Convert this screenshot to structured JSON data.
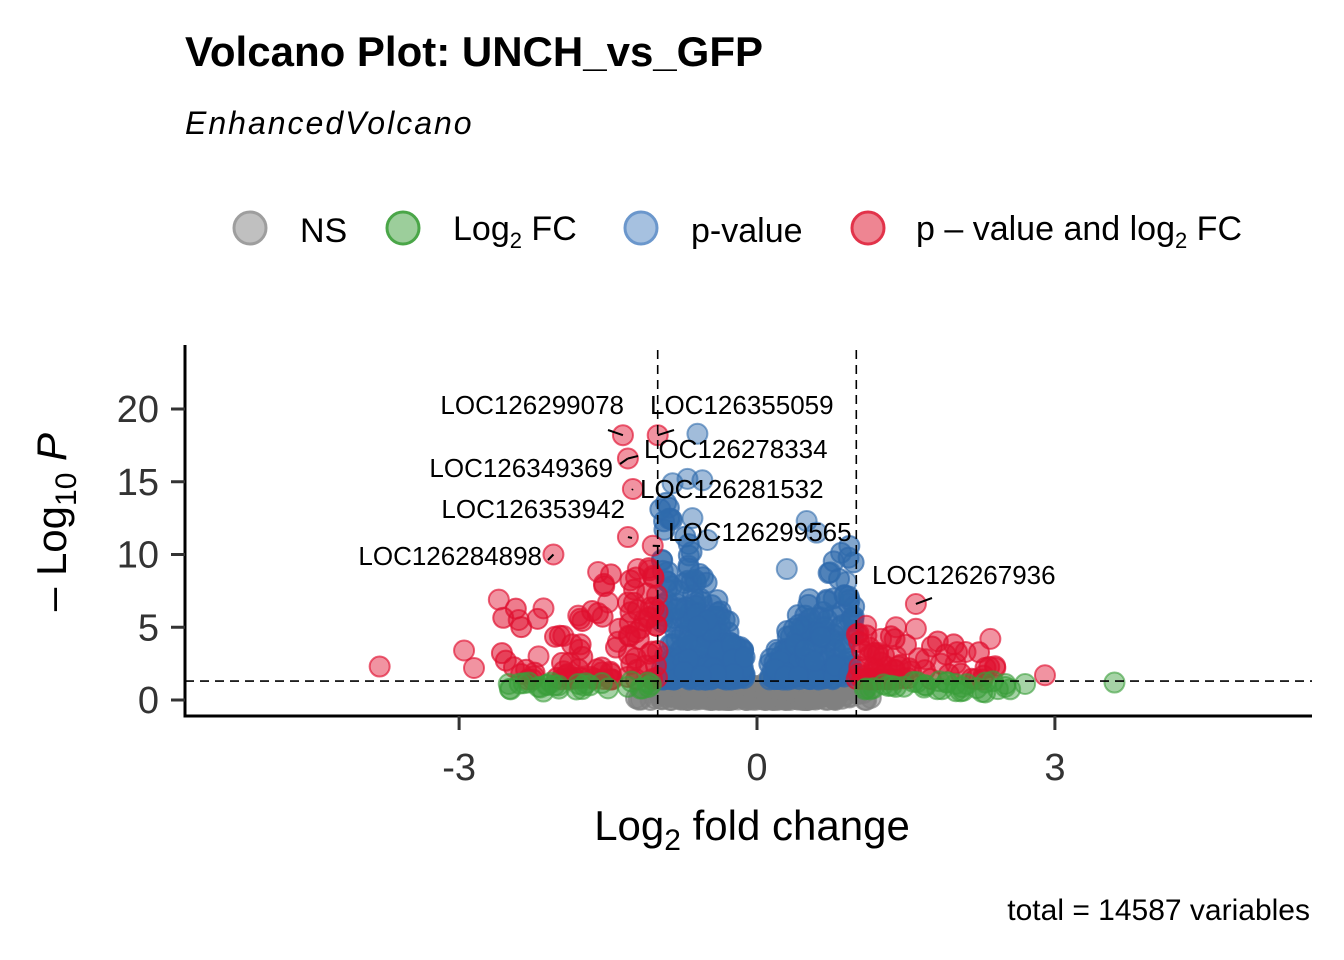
{
  "chart_data": {
    "type": "scatter",
    "title": "Volcano Plot: UNCH_vs_GFP",
    "subtitle": "EnhancedVolcano",
    "caption": "total = 14587 variables",
    "xlabel": {
      "base": "Log",
      "sub": "2",
      "rest": " fold change"
    },
    "ylabel": {
      "prefix": "– Log",
      "sub": "10",
      "rest": " P"
    },
    "xlim": [
      -5.4,
      5.4
    ],
    "ylim": [
      -1,
      24
    ],
    "xticks": [
      {
        "value": -3,
        "label": "-3"
      },
      {
        "value": 0,
        "label": "0"
      },
      {
        "value": 3,
        "label": "3"
      }
    ],
    "yticks": [
      {
        "value": 0,
        "label": "0"
      },
      {
        "value": 5,
        "label": "5"
      },
      {
        "value": 10,
        "label": "10"
      },
      {
        "value": 15,
        "label": "15"
      },
      {
        "value": 20,
        "label": "20"
      }
    ],
    "fc_cutoff": 1,
    "p_cutoff_y": 1.3,
    "legend": [
      {
        "key": "ns",
        "label": "NS",
        "color": "#9e9e9e"
      },
      {
        "key": "fc",
        "label": "Log",
        "sub": "2",
        "rest": " FC",
        "color": "#4aa648"
      },
      {
        "key": "p",
        "label": "p-value",
        "color": "#6b97cc"
      },
      {
        "key": "both",
        "label": "p – value and log",
        "sub": "2",
        "rest": " FC",
        "color": "#e2334a"
      }
    ],
    "colors": {
      "ns": "#808080",
      "fc": "#3a9e3a",
      "p": "#2f6aac",
      "both": "#e0102f"
    },
    "series": {
      "fc": [
        [
          -2.5,
          1.1
        ],
        [
          -2.3,
          1.2
        ],
        [
          -2.2,
          0.9
        ],
        [
          -2.0,
          1.0
        ],
        [
          -1.8,
          1.1
        ],
        [
          -1.5,
          0.8
        ],
        [
          -1.3,
          0.9
        ],
        [
          -1.1,
          1.2
        ],
        [
          1.1,
          0.8
        ],
        [
          1.4,
          0.9
        ],
        [
          1.7,
          1.0
        ],
        [
          2.0,
          1.1
        ],
        [
          2.3,
          1.2
        ],
        [
          2.5,
          0.9
        ],
        [
          2.7,
          1.1
        ],
        [
          3.6,
          1.2
        ]
      ],
      "p": [
        [
          -0.6,
          18.3
        ],
        [
          -0.7,
          15.2
        ],
        [
          -0.55,
          15.1
        ],
        [
          -0.85,
          14.9
        ],
        [
          -0.65,
          12.5
        ],
        [
          0.5,
          12.3
        ],
        [
          0.9,
          8.1
        ],
        [
          -0.5,
          11.0
        ],
        [
          0.6,
          11.5
        ],
        [
          0.3,
          9.0
        ]
      ],
      "both": [
        [
          -1.35,
          18.2
        ],
        [
          -1.0,
          18.2
        ],
        [
          -1.3,
          16.6
        ],
        [
          -1.25,
          14.5
        ],
        [
          -1.3,
          11.2
        ],
        [
          -1.05,
          10.6
        ],
        [
          -2.05,
          10.0
        ],
        [
          -3.8,
          2.3
        ],
        [
          -2.95,
          3.4
        ],
        [
          -2.85,
          2.2
        ],
        [
          -2.6,
          6.9
        ],
        [
          -2.15,
          6.3
        ],
        [
          -1.5,
          6.7
        ],
        [
          -1.8,
          5.8
        ],
        [
          -1.95,
          4.4
        ],
        [
          2.35,
          4.2
        ],
        [
          1.6,
          6.6
        ],
        [
          2.9,
          1.7
        ],
        [
          1.1,
          5.1
        ],
        [
          1.4,
          5.0
        ],
        [
          1.6,
          4.9
        ],
        [
          2.1,
          3.3
        ],
        [
          2.4,
          2.2
        ],
        [
          1.25,
          4.2
        ],
        [
          1.85,
          2.5
        ],
        [
          1.4,
          3.0
        ],
        [
          1.7,
          2.8
        ],
        [
          2.0,
          2.5
        ],
        [
          -1.6,
          8.8
        ],
        [
          -1.2,
          9.0
        ],
        [
          -2.4,
          5.5
        ],
        [
          -2.2,
          3.0
        ],
        [
          -1.4,
          4.0
        ]
      ]
    },
    "labels": [
      {
        "text": "LOC126299078",
        "x": -1.35,
        "y": 18.2
      },
      {
        "text": "LOC126355059",
        "x": -1.0,
        "y": 18.2
      },
      {
        "text": "LOC126278334",
        "x": -1.3,
        "y": 16.6
      },
      {
        "text": "LOC126349369",
        "x": -1.3,
        "y": 16.6
      },
      {
        "text": "LOC126281532",
        "x": -1.25,
        "y": 14.5
      },
      {
        "text": "LOC126353942",
        "x": -1.3,
        "y": 11.2
      },
      {
        "text": "LOC126299565",
        "x": -1.05,
        "y": 10.6
      },
      {
        "text": "LOC126284898",
        "x": -2.05,
        "y": 10.0
      },
      {
        "text": "LOC126267936",
        "x": 1.6,
        "y": 6.6
      }
    ]
  }
}
